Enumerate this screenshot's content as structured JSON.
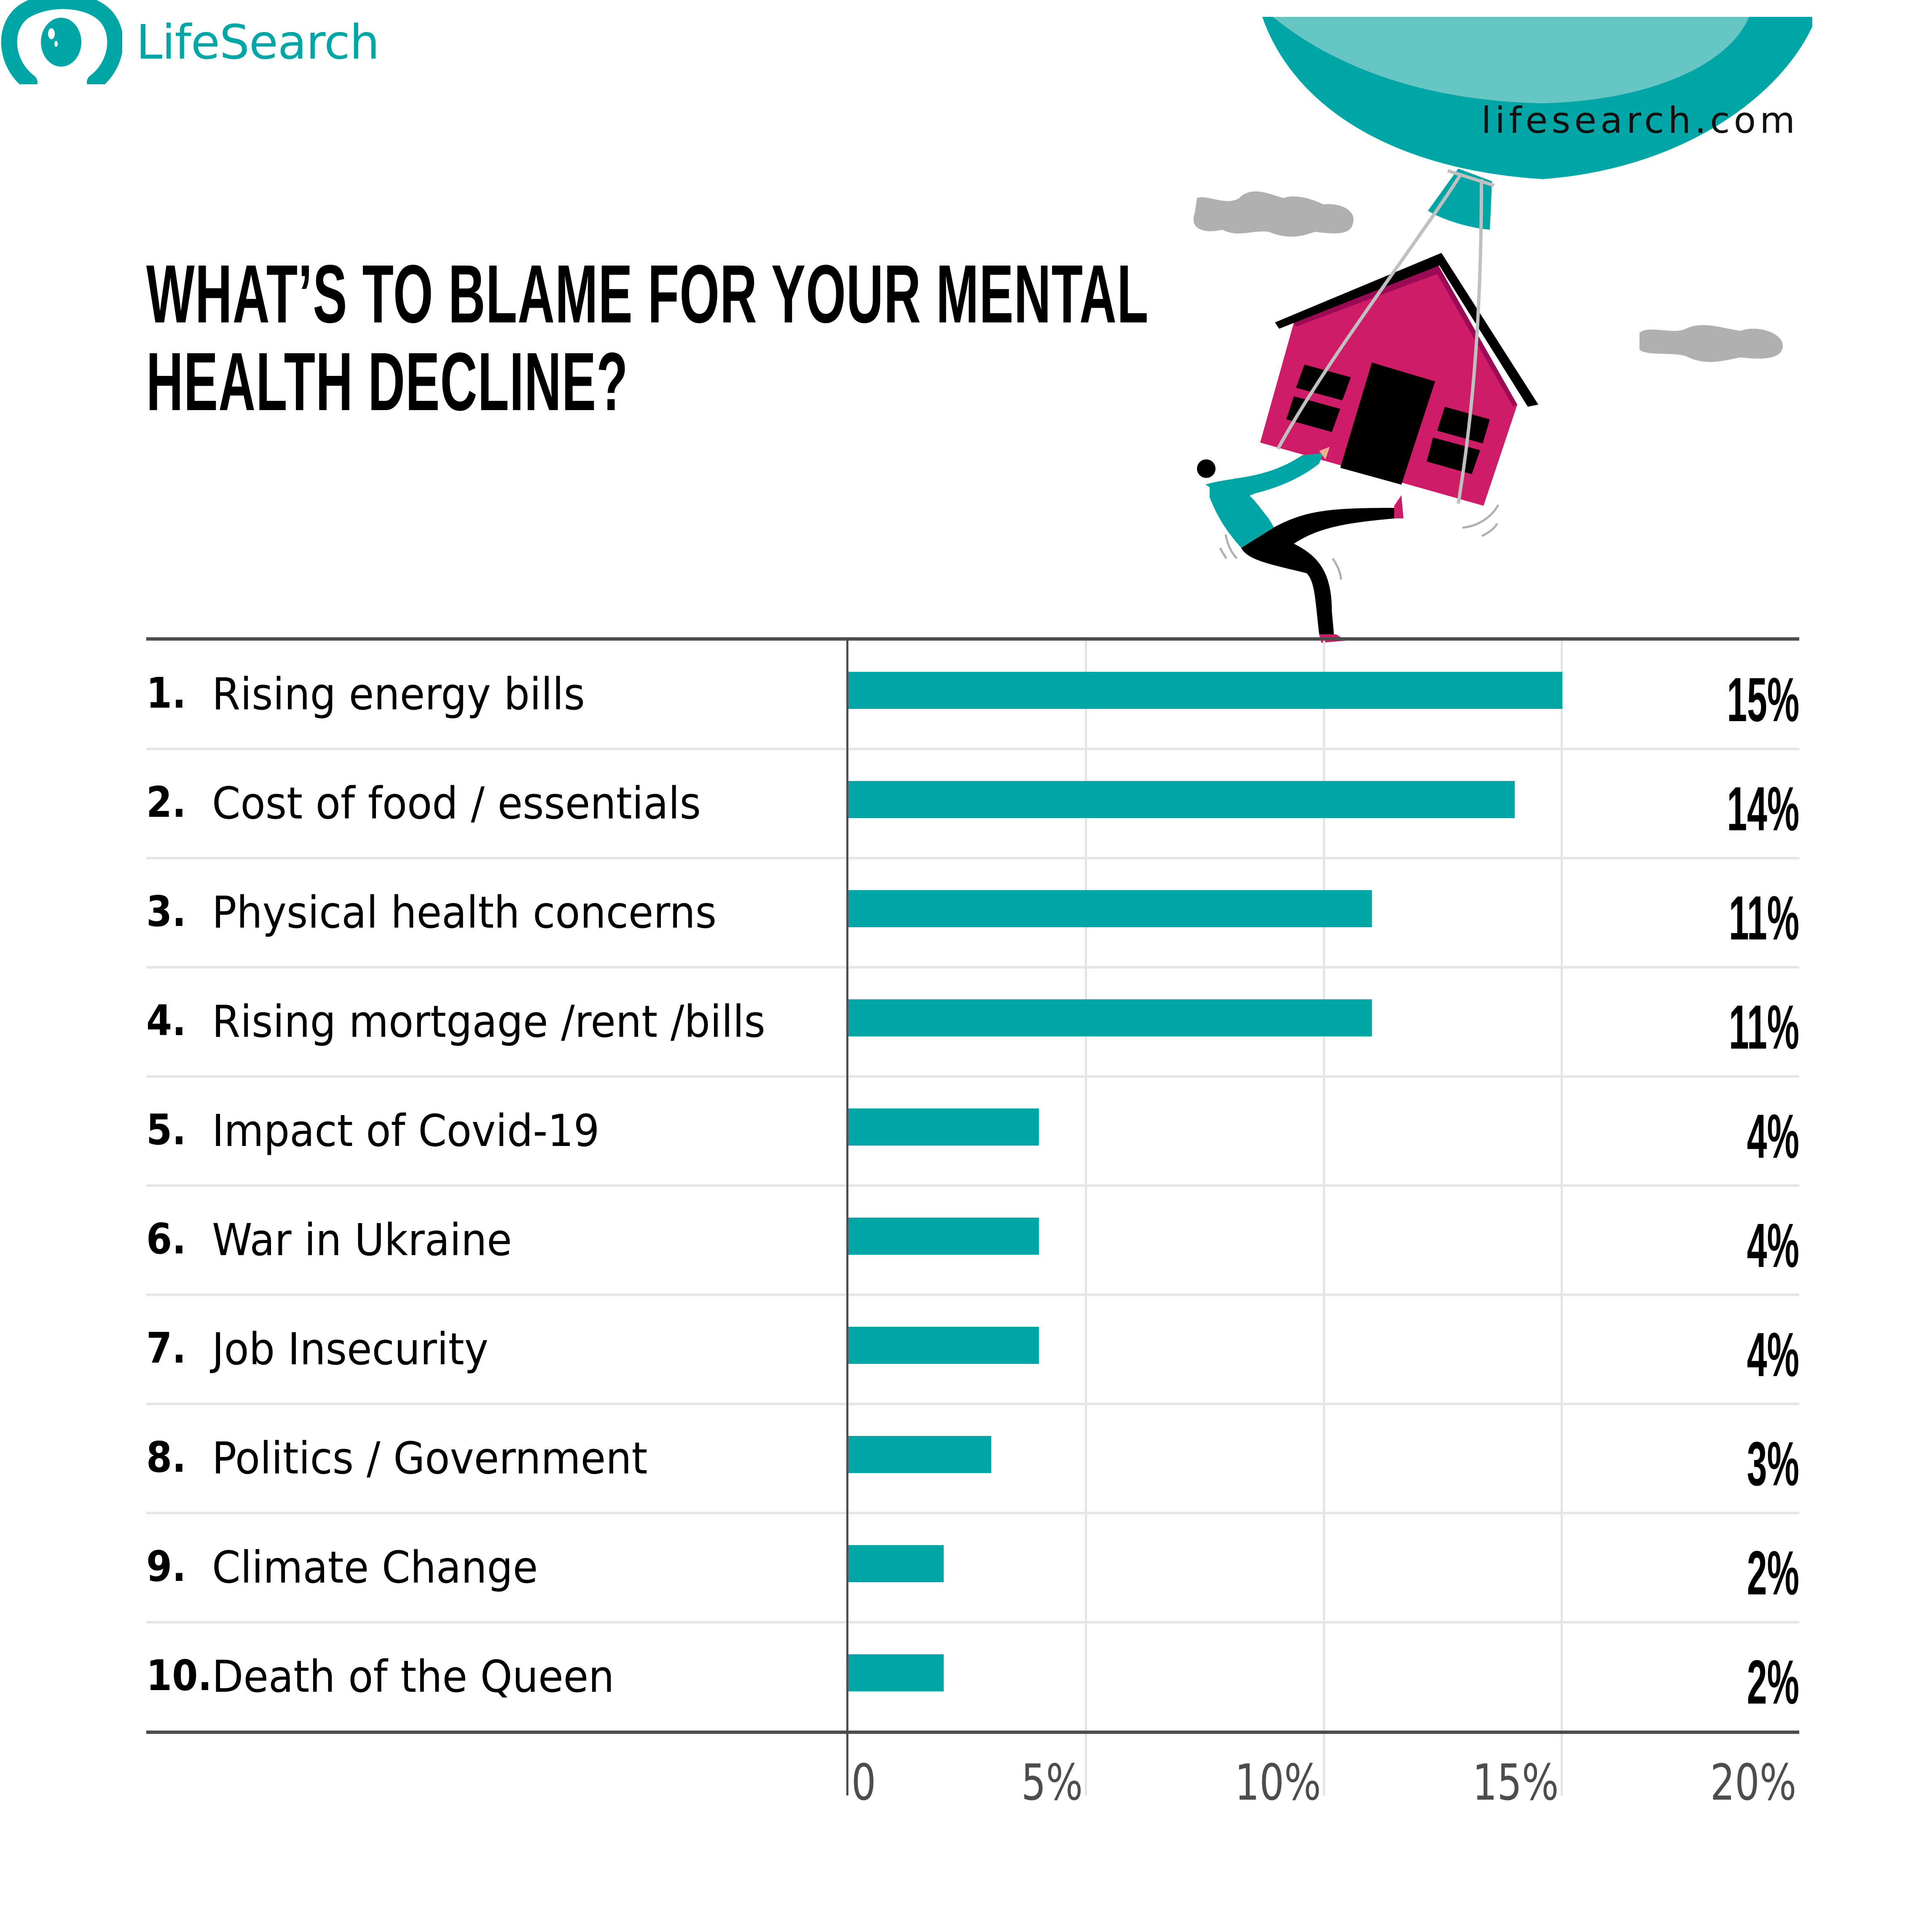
{
  "brand": {
    "logo_text": "LifeSearch",
    "logo_icon": "eye-icon",
    "site_url": "lifesearch.com",
    "accent_color": "#00a5a5",
    "highlight_color": "#cf1c69"
  },
  "header": {
    "title_line1": "WHAT’S TO BLAME FOR YOUR MENTAL",
    "title_line2": "HEALTH DECLINE?"
  },
  "illustration": {
    "description": "person pulling a pink house lifted by a teal balloon, grey clouds",
    "icons": [
      "balloon-icon",
      "house-icon",
      "person-icon",
      "cloud-icon"
    ]
  },
  "chart": {
    "rows": [
      {
        "num": "1.",
        "label": "Rising energy bills",
        "value": 15,
        "value_label": "15%"
      },
      {
        "num": "2.",
        "label": "Cost of food / essentials",
        "value": 14,
        "value_label": "14%"
      },
      {
        "num": "3.",
        "label": "Physical health concerns",
        "value": 11,
        "value_label": "11%"
      },
      {
        "num": "4.",
        "label": "Rising mortgage /rent /bills",
        "value": 11,
        "value_label": "11%"
      },
      {
        "num": "5.",
        "label": "Impact of Covid-19",
        "value": 4,
        "value_label": "4%"
      },
      {
        "num": "6.",
        "label": "War in Ukraine",
        "value": 4,
        "value_label": "4%"
      },
      {
        "num": "7.",
        "label": "Job Insecurity",
        "value": 4,
        "value_label": "4%"
      },
      {
        "num": "8.",
        "label": "Politics / Government",
        "value": 3,
        "value_label": "3%"
      },
      {
        "num": "9.",
        "label": "Climate Change",
        "value": 2,
        "value_label": "2%"
      },
      {
        "num": "10.",
        "label": "Death of the Queen",
        "value": 2,
        "value_label": "2%"
      }
    ],
    "ticks": [
      "0",
      "5%",
      "10%",
      "15%",
      "20%"
    ]
  },
  "chart_data": {
    "type": "bar",
    "orientation": "horizontal",
    "title": "WHAT’S TO BLAME FOR YOUR MENTAL HEALTH DECLINE?",
    "categories": [
      "Rising energy bills",
      "Cost of food / essentials",
      "Physical health concerns",
      "Rising mortgage /rent /bills",
      "Impact of Covid-19",
      "War in Ukraine",
      "Job Insecurity",
      "Politics / Government",
      "Climate Change",
      "Death of the Queen"
    ],
    "values": [
      15,
      14,
      11,
      11,
      4,
      4,
      4,
      3,
      2,
      2
    ],
    "xlabel": "",
    "ylabel": "",
    "xlim": [
      0,
      20
    ],
    "x_ticks": [
      "0",
      "5%",
      "10%",
      "15%",
      "20%"
    ],
    "grid": true,
    "legend": null,
    "bar_color": "#00a5a5",
    "data_labels": [
      "15%",
      "14%",
      "11%",
      "11%",
      "4%",
      "4%",
      "4%",
      "3%",
      "2%",
      "2%"
    ]
  }
}
